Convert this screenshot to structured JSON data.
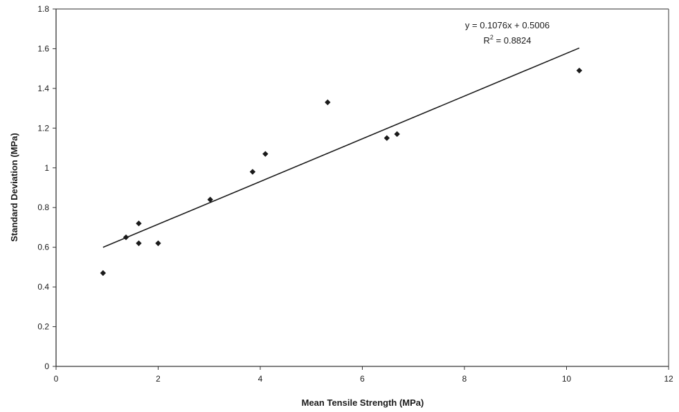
{
  "chart_data": {
    "type": "scatter",
    "title": "",
    "xlabel": "Mean Tensile Strength (MPa)",
    "ylabel": "Standard Deviation (MPa)",
    "xlim": [
      0,
      12
    ],
    "ylim": [
      0,
      1.8
    ],
    "x_ticks": [
      "0",
      "2",
      "4",
      "6",
      "8",
      "10",
      "12"
    ],
    "y_ticks": [
      "0",
      "0.2",
      "0.4",
      "0.6",
      "0.8",
      "1",
      "1.2",
      "1.4",
      "1.6",
      "1.8"
    ],
    "grid": false,
    "legend": "none",
    "points": [
      {
        "x": 0.92,
        "y": 0.47
      },
      {
        "x": 1.37,
        "y": 0.65
      },
      {
        "x": 1.62,
        "y": 0.72
      },
      {
        "x": 1.62,
        "y": 0.62
      },
      {
        "x": 2.0,
        "y": 0.62
      },
      {
        "x": 3.02,
        "y": 0.84
      },
      {
        "x": 3.85,
        "y": 0.98
      },
      {
        "x": 4.1,
        "y": 1.07
      },
      {
        "x": 5.32,
        "y": 1.33
      },
      {
        "x": 6.48,
        "y": 1.15
      },
      {
        "x": 6.68,
        "y": 1.17
      },
      {
        "x": 10.25,
        "y": 1.49
      }
    ],
    "trendline": {
      "type": "linear",
      "slope": 0.1076,
      "intercept": 0.5006,
      "x_range": [
        0.92,
        10.25
      ],
      "equation": "y = 0.1076x + 0.5006",
      "r2_prefix": "R",
      "r2_exponent": "2",
      "r2_value": " = 0.8824"
    },
    "colors": {
      "marker": "#1a1a1a",
      "line": "#1a1a1a",
      "frame": "#555555"
    }
  }
}
